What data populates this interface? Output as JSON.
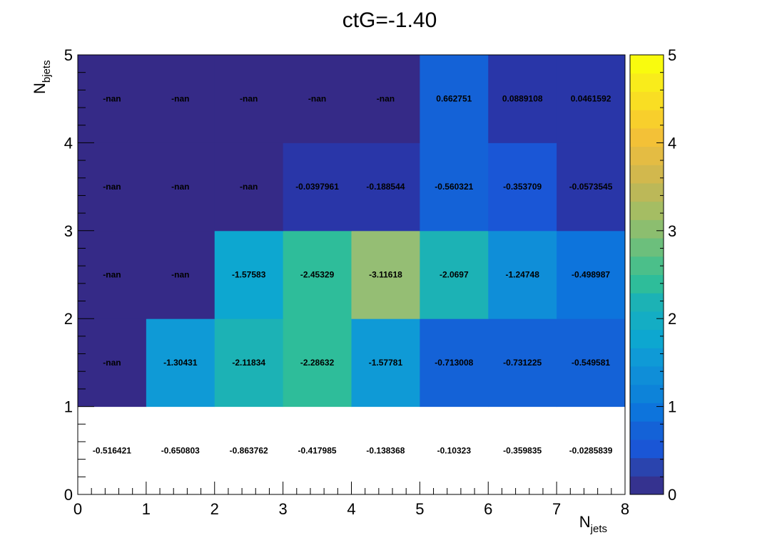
{
  "chart_data": {
    "type": "heatmap",
    "title": "ctG=-1.40",
    "xlabel": {
      "main": "N",
      "sub": "jets"
    },
    "ylabel": {
      "main": "N",
      "sub": "bjets"
    },
    "xlim": [
      0,
      8
    ],
    "ylim": [
      0,
      5
    ],
    "zlim": [
      0,
      5
    ],
    "x_ticks": [
      "0",
      "1",
      "2",
      "3",
      "4",
      "5",
      "6",
      "7",
      "8"
    ],
    "y_ticks": [
      "0",
      "1",
      "2",
      "3",
      "4",
      "5"
    ],
    "z_ticks": [
      "0",
      "1",
      "2",
      "3",
      "4",
      "5"
    ],
    "colormap": "viridis-like",
    "rows": [
      {
        "y_bin": [
          0,
          1
        ],
        "values": [
          -0.516421,
          -0.650803,
          -0.863762,
          -0.417985,
          -0.138368,
          -0.10323,
          -0.359835,
          -0.0285839
        ],
        "labels": [
          "-0.516421",
          "-0.650803",
          "-0.863762",
          "-0.417985",
          "-0.138368",
          "-0.10323",
          "-0.359835",
          "-0.0285839"
        ]
      },
      {
        "y_bin": [
          1,
          2
        ],
        "values": [
          null,
          -1.30431,
          -2.11834,
          -2.28632,
          -1.57781,
          -0.713008,
          -0.731225,
          -0.549581
        ],
        "labels": [
          "-nan",
          "-1.30431",
          "-2.11834",
          "-2.28632",
          "-1.57781",
          "-0.713008",
          "-0.731225",
          "-0.549581"
        ]
      },
      {
        "y_bin": [
          2,
          3
        ],
        "values": [
          null,
          null,
          -1.57583,
          -2.45329,
          -3.11618,
          -2.0697,
          -1.24748,
          -0.498987
        ],
        "labels": [
          "-nan",
          "-nan",
          "-1.57583",
          "-2.45329",
          "-3.11618",
          "-2.0697",
          "-1.24748",
          "-0.498987"
        ]
      },
      {
        "y_bin": [
          3,
          4
        ],
        "values": [
          null,
          null,
          null,
          -0.0397961,
          -0.188544,
          -0.560321,
          -0.353709,
          -0.0573545
        ],
        "labels": [
          "-nan",
          "-nan",
          "-nan",
          "-0.0397961",
          "-0.188544",
          "-0.560321",
          "-0.353709",
          "-0.0573545"
        ]
      },
      {
        "y_bin": [
          4,
          5
        ],
        "values": [
          null,
          null,
          null,
          null,
          null,
          0.662751,
          0.0889108,
          0.0461592
        ],
        "labels": [
          "-nan",
          "-nan",
          "-nan",
          "-nan",
          "-nan",
          "0.662751",
          "0.0889108",
          "0.0461592"
        ]
      }
    ],
    "fill_colors": [
      [
        "#ffffff",
        "#ffffff",
        "#ffffff",
        "#ffffff",
        "#ffffff",
        "#ffffff",
        "#ffffff",
        "#ffffff"
      ],
      [
        "#352a87",
        "#0f9ad6",
        "#1cb2b5",
        "#2ebd9a",
        "#0f9ad6",
        "#1462d7",
        "#1462d7",
        "#1462d7"
      ],
      [
        "#352a87",
        "#352a87",
        "#0da7d0",
        "#2ebd9a",
        "#95be74",
        "#1cb2b5",
        "#0f8ed8",
        "#0d74dc"
      ],
      [
        "#352a87",
        "#352a87",
        "#352a87",
        "#2936a8",
        "#2936a8",
        "#1462d7",
        "#1a56d6",
        "#2936a8"
      ],
      [
        "#352a87",
        "#352a87",
        "#352a87",
        "#352a87",
        "#352a87",
        "#1462d7",
        "#2936a8",
        "#2936a8"
      ]
    ],
    "palette": [
      "#35328f",
      "#2a44ae",
      "#1a56d6",
      "#1462d7",
      "#0d74dc",
      "#0d83d9",
      "#0f8ed8",
      "#0f9ad6",
      "#0da7d0",
      "#14adc4",
      "#1cb2b5",
      "#2ebd9a",
      "#4bbf8a",
      "#6cbf7c",
      "#8cbe6f",
      "#a5bd63",
      "#bcb858",
      "#d2b84d",
      "#e4bc43",
      "#f3c137",
      "#f8cf2c",
      "#f9de23",
      "#f9ec1b",
      "#f9fb0e"
    ]
  }
}
